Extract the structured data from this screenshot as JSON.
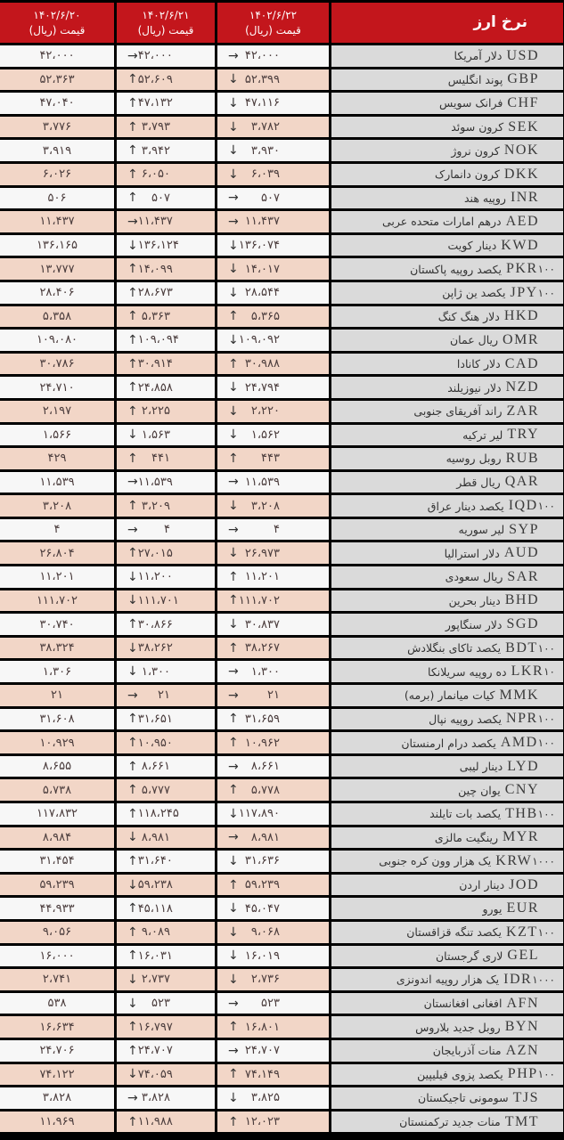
{
  "header": {
    "title": "نرخ ارز",
    "price_label": "قیمت (ریال)",
    "dates": [
      "۱۴۰۲/۶/۲۲",
      "۱۴۰۲/۶/۲۱",
      "۱۴۰۲/۶/۲۰"
    ]
  },
  "colors": {
    "header": "#c3161c",
    "row_odd": "#f7f7f7",
    "row_even": "#f2d6c7",
    "name_col": "#dadada"
  },
  "arrow_icons": {
    "up": "arrow-up-icon",
    "down": "arrow-down-icon",
    "flat": "arrow-right-icon"
  },
  "rows": [
    {
      "code": "USD",
      "unit": "",
      "name": "دلار آمریکا",
      "p22": "۴۲،۰۰۰",
      "t22": "flat",
      "p21": "۴۲،۰۰۰",
      "t21": "flat",
      "p20": "۴۲،۰۰۰"
    },
    {
      "code": "GBP",
      "unit": "",
      "name": "پوند انگلیس",
      "p22": "۵۲،۳۹۹",
      "t22": "down",
      "p21": "۵۲،۶۰۹",
      "t21": "up",
      "p20": "۵۲،۳۶۳"
    },
    {
      "code": "CHF",
      "unit": "",
      "name": "فرانک سویس",
      "p22": "۴۷،۱۱۶",
      "t22": "down",
      "p21": "۴۷،۱۳۲",
      "t21": "up",
      "p20": "۴۷،۰۴۰"
    },
    {
      "code": "SEK",
      "unit": "",
      "name": "کرون سوئد",
      "p22": "۳،۷۸۲",
      "t22": "down",
      "p21": "۳،۷۹۳",
      "t21": "up",
      "p20": "۳،۷۷۶"
    },
    {
      "code": "NOK",
      "unit": "",
      "name": "کرون نروژ",
      "p22": "۳،۹۳۰",
      "t22": "down",
      "p21": "۳،۹۴۲",
      "t21": "up",
      "p20": "۳،۹۱۹"
    },
    {
      "code": "DKK",
      "unit": "",
      "name": "کرون دانمارک",
      "p22": "۶،۰۳۹",
      "t22": "down",
      "p21": "۶،۰۵۰",
      "t21": "up",
      "p20": "۶،۰۲۶"
    },
    {
      "code": "INR",
      "unit": "",
      "name": "روپیه هند",
      "p22": "۵۰۷",
      "t22": "flat",
      "p21": "۵۰۷",
      "t21": "up",
      "p20": "۵۰۶"
    },
    {
      "code": "AED",
      "unit": "",
      "name": "درهم امارات متحده عربی",
      "p22": "۱۱،۴۳۷",
      "t22": "flat",
      "p21": "۱۱،۴۳۷",
      "t21": "flat",
      "p20": "۱۱،۴۳۷"
    },
    {
      "code": "KWD",
      "unit": "",
      "name": "دینار کویت",
      "p22": "۱۳۶،۰۷۴",
      "t22": "down",
      "p21": "۱۳۶،۱۲۴",
      "t21": "down",
      "p20": "۱۳۶،۱۶۵"
    },
    {
      "code": "PKR",
      "unit": "۱۰۰",
      "name": "یکصد روپیه پاکستان",
      "p22": "۱۴،۰۱۷",
      "t22": "down",
      "p21": "۱۴،۰۹۹",
      "t21": "up",
      "p20": "۱۳،۷۷۷"
    },
    {
      "code": "JPY",
      "unit": "۱۰۰",
      "name": "یکصد ین ژاپن",
      "p22": "۲۸،۵۴۴",
      "t22": "down",
      "p21": "۲۸،۶۷۳",
      "t21": "up",
      "p20": "۲۸،۴۰۶"
    },
    {
      "code": "HKD",
      "unit": "",
      "name": "دلار هنگ کنگ",
      "p22": "۵،۳۶۵",
      "t22": "up",
      "p21": "۵،۳۶۳",
      "t21": "up",
      "p20": "۵،۳۵۸"
    },
    {
      "code": "OMR",
      "unit": "",
      "name": "ریال عمان",
      "p22": "۱۰۹،۰۹۲",
      "t22": "down",
      "p21": "۱۰۹،۰۹۴",
      "t21": "up",
      "p20": "۱۰۹،۰۸۰"
    },
    {
      "code": "CAD",
      "unit": "",
      "name": "دلار کانادا",
      "p22": "۳۰،۹۸۸",
      "t22": "up",
      "p21": "۳۰،۹۱۴",
      "t21": "up",
      "p20": "۳۰،۷۸۶"
    },
    {
      "code": "NZD",
      "unit": "",
      "name": "دلار نیوزیلند",
      "p22": "۲۴،۷۹۴",
      "t22": "down",
      "p21": "۲۴،۸۵۸",
      "t21": "up",
      "p20": "۲۴،۷۱۰"
    },
    {
      "code": "ZAR",
      "unit": "",
      "name": "راند آفریقای جنوبی",
      "p22": "۲،۲۲۰",
      "t22": "down",
      "p21": "۲،۲۲۵",
      "t21": "up",
      "p20": "۲،۱۹۷"
    },
    {
      "code": "TRY",
      "unit": "",
      "name": "لیر ترکیه",
      "p22": "۱،۵۶۲",
      "t22": "down",
      "p21": "۱،۵۶۳",
      "t21": "down",
      "p20": "۱،۵۶۶"
    },
    {
      "code": "RUB",
      "unit": "",
      "name": "روبل روسیه",
      "p22": "۴۴۳",
      "t22": "up",
      "p21": "۴۴۱",
      "t21": "up",
      "p20": "۴۲۹"
    },
    {
      "code": "QAR",
      "unit": "",
      "name": "ریال قطر",
      "p22": "۱۱،۵۳۹",
      "t22": "flat",
      "p21": "۱۱،۵۳۹",
      "t21": "flat",
      "p20": "۱۱،۵۳۹"
    },
    {
      "code": "IQD",
      "unit": "۱۰۰",
      "name": "یکصد دینار عراق",
      "p22": "۳،۲۰۸",
      "t22": "down",
      "p21": "۳،۲۰۹",
      "t21": "up",
      "p20": "۳،۲۰۸"
    },
    {
      "code": "SYP",
      "unit": "",
      "name": "لیر سوریه",
      "p22": "۴",
      "t22": "flat",
      "p21": "۴",
      "t21": "flat",
      "p20": "۴"
    },
    {
      "code": "AUD",
      "unit": "",
      "name": "دلار استرالیا",
      "p22": "۲۶،۹۷۳",
      "t22": "down",
      "p21": "۲۷،۰۱۵",
      "t21": "up",
      "p20": "۲۶،۸۰۴"
    },
    {
      "code": "SAR",
      "unit": "",
      "name": "ریال سعودی",
      "p22": "۱۱،۲۰۱",
      "t22": "up",
      "p21": "۱۱،۲۰۰",
      "t21": "down",
      "p20": "۱۱،۲۰۱"
    },
    {
      "code": "BHD",
      "unit": "",
      "name": "دینار بحرین",
      "p22": "۱۱۱،۷۰۲",
      "t22": "up",
      "p21": "۱۱۱،۷۰۱",
      "t21": "down",
      "p20": "۱۱۱،۷۰۲"
    },
    {
      "code": "SGD",
      "unit": "",
      "name": "دلار سنگاپور",
      "p22": "۳۰،۸۳۷",
      "t22": "down",
      "p21": "۳۰،۸۶۶",
      "t21": "up",
      "p20": "۳۰،۷۴۰"
    },
    {
      "code": "BDT",
      "unit": "۱۰۰",
      "name": "یکصد تاکای بنگلادش",
      "p22": "۳۸،۲۶۷",
      "t22": "up",
      "p21": "۳۸،۲۶۲",
      "t21": "down",
      "p20": "۳۸،۳۲۴"
    },
    {
      "code": "LKR",
      "unit": "۱۰",
      "name": "ده روپیه سریلانکا",
      "p22": "۱،۳۰۰",
      "t22": "flat",
      "p21": "۱،۳۰۰",
      "t21": "down",
      "p20": "۱،۳۰۶"
    },
    {
      "code": "MMK",
      "unit": "",
      "name": "کیات میانمار (برمه)",
      "p22": "۲۱",
      "t22": "flat",
      "p21": "۲۱",
      "t21": "flat",
      "p20": "۲۱"
    },
    {
      "code": "NPR",
      "unit": "۱۰۰",
      "name": "یکصد روپیه نپال",
      "p22": "۳۱،۶۵۹",
      "t22": "up",
      "p21": "۳۱،۶۵۱",
      "t21": "up",
      "p20": "۳۱،۶۰۸"
    },
    {
      "code": "AMD",
      "unit": "۱۰۰",
      "name": "یکصد درام ارمنستان",
      "p22": "۱۰،۹۶۲",
      "t22": "up",
      "p21": "۱۰،۹۵۰",
      "t21": "up",
      "p20": "۱۰،۹۲۹"
    },
    {
      "code": "LYD",
      "unit": "",
      "name": "دینار لیبی",
      "p22": "۸،۶۶۱",
      "t22": "flat",
      "p21": "۸،۶۶۱",
      "t21": "up",
      "p20": "۸،۶۵۵"
    },
    {
      "code": "CNY",
      "unit": "",
      "name": "یوان چین",
      "p22": "۵،۷۷۸",
      "t22": "up",
      "p21": "۵،۷۷۷",
      "t21": "up",
      "p20": "۵،۷۳۸"
    },
    {
      "code": "THB",
      "unit": "۱۰۰",
      "name": "یکصد بات تایلند",
      "p22": "۱۱۷،۸۹۰",
      "t22": "down",
      "p21": "۱۱۸،۲۴۵",
      "t21": "up",
      "p20": "۱۱۷،۸۳۲"
    },
    {
      "code": "MYR",
      "unit": "",
      "name": "رینگیت مالزی",
      "p22": "۸،۹۸۱",
      "t22": "flat",
      "p21": "۸،۹۸۱",
      "t21": "down",
      "p20": "۸،۹۸۴"
    },
    {
      "code": "KRW",
      "unit": "۱۰۰۰",
      "name": "یک هزار وون کره جنوبی",
      "p22": "۳۱،۶۳۶",
      "t22": "down",
      "p21": "۳۱،۶۴۰",
      "t21": "up",
      "p20": "۳۱،۴۵۴"
    },
    {
      "code": "JOD",
      "unit": "",
      "name": "دینار اردن",
      "p22": "۵۹،۲۳۹",
      "t22": "up",
      "p21": "۵۹،۲۳۸",
      "t21": "down",
      "p20": "۵۹،۲۳۹"
    },
    {
      "code": "EUR",
      "unit": "",
      "name": "یورو",
      "p22": "۴۵،۰۴۷",
      "t22": "down",
      "p21": "۴۵،۱۱۸",
      "t21": "up",
      "p20": "۴۴،۹۳۳"
    },
    {
      "code": "KZT",
      "unit": "۱۰۰",
      "name": "یکصد تنگه قزاقستان",
      "p22": "۹،۰۶۸",
      "t22": "down",
      "p21": "۹،۰۸۹",
      "t21": "up",
      "p20": "۹،۰۵۶"
    },
    {
      "code": "GEL",
      "unit": "",
      "name": "لاری گرجستان",
      "p22": "۱۶،۰۱۹",
      "t22": "down",
      "p21": "۱۶،۰۳۱",
      "t21": "up",
      "p20": "۱۶،۰۰۰"
    },
    {
      "code": "IDR",
      "unit": "۱۰۰۰",
      "name": "یک هزار روپیه اندونزی",
      "p22": "۲،۷۳۶",
      "t22": "down",
      "p21": "۲،۷۳۷",
      "t21": "down",
      "p20": "۲،۷۴۱"
    },
    {
      "code": "AFN",
      "unit": "",
      "name": "افغانی افغانستان",
      "p22": "۵۲۳",
      "t22": "flat",
      "p21": "۵۲۳",
      "t21": "down",
      "p20": "۵۳۸"
    },
    {
      "code": "BYN",
      "unit": "",
      "name": "روبل جدید بلاروس",
      "p22": "۱۶،۸۰۱",
      "t22": "up",
      "p21": "۱۶،۷۹۷",
      "t21": "up",
      "p20": "۱۶،۶۳۴"
    },
    {
      "code": "AZN",
      "unit": "",
      "name": "منات آذربایجان",
      "p22": "۲۴،۷۰۷",
      "t22": "flat",
      "p21": "۲۴،۷۰۷",
      "t21": "up",
      "p20": "۲۴،۷۰۶"
    },
    {
      "code": "PHP",
      "unit": "۱۰۰",
      "name": "یکصد پزوی فیلیپین",
      "p22": "۷۴،۱۴۹",
      "t22": "up",
      "p21": "۷۴،۰۵۹",
      "t21": "down",
      "p20": "۷۴،۱۲۲"
    },
    {
      "code": "TJS",
      "unit": "",
      "name": "سومونی تاجیکستان",
      "p22": "۳،۸۲۵",
      "t22": "down",
      "p21": "۳،۸۲۸",
      "t21": "flat",
      "p20": "۳،۸۲۸"
    },
    {
      "code": "TMT",
      "unit": "",
      "name": "منات جدید ترکمنستان",
      "p22": "۱۲،۰۲۳",
      "t22": "up",
      "p21": "۱۱،۹۸۸",
      "t21": "up",
      "p20": "۱۱،۹۶۹"
    }
  ]
}
